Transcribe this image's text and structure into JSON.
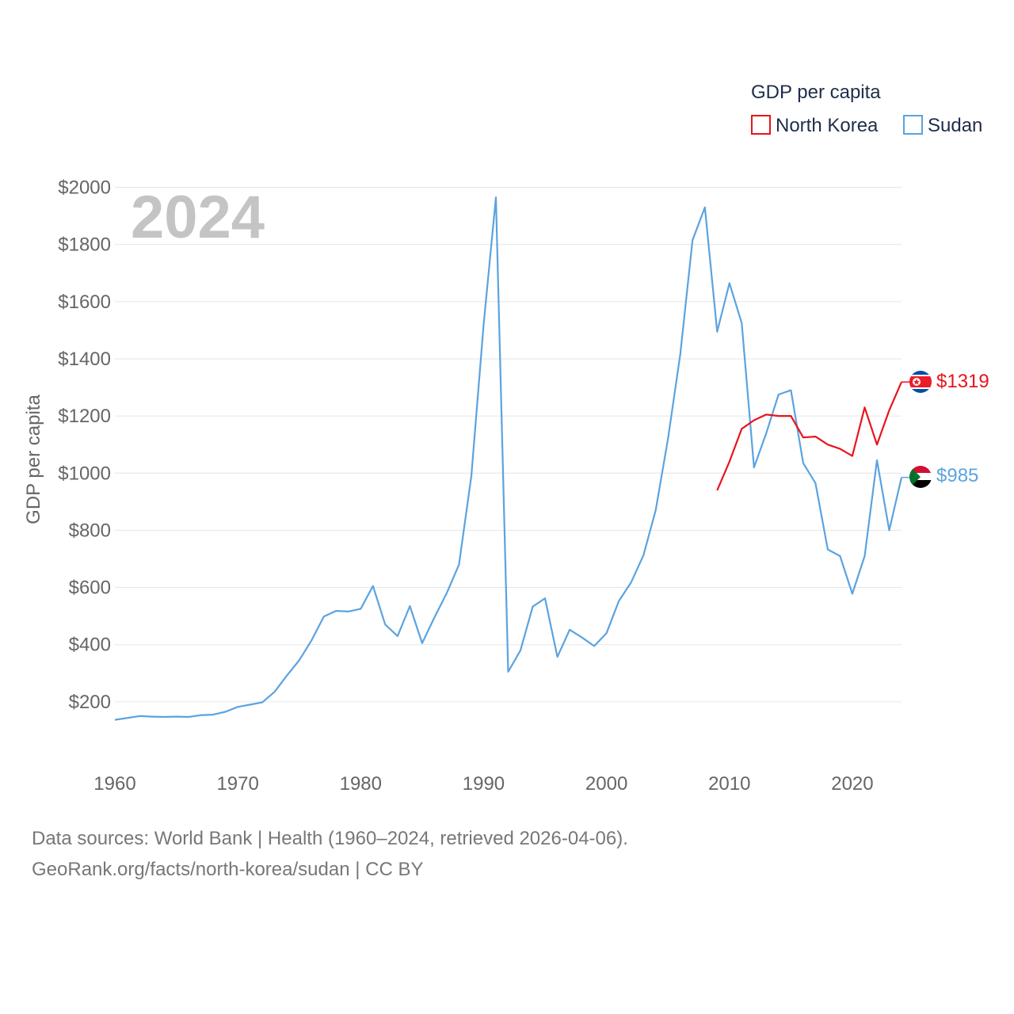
{
  "chart_data": {
    "type": "line",
    "year_overlay": "2024",
    "ylabel": "GDP per capita",
    "xlabel": "",
    "xlim": [
      1960,
      2024
    ],
    "ylim": [
      0,
      2000
    ],
    "x_ticks": [
      1960,
      1970,
      1980,
      1990,
      2000,
      2010,
      2020
    ],
    "x_tick_labels": [
      "1960",
      "1970",
      "1980",
      "1990",
      "2000",
      "2010",
      "2020"
    ],
    "y_ticks": [
      200,
      400,
      600,
      800,
      1000,
      1200,
      1400,
      1600,
      1800,
      2000
    ],
    "y_tick_labels": [
      "$200",
      "$400",
      "$600",
      "$800",
      "$1000",
      "$1200",
      "$1400",
      "$1600",
      "$1800",
      "$2000"
    ],
    "legend": {
      "title": "GDP per capita",
      "placement": "top-right"
    },
    "series": [
      {
        "name": "North Korea",
        "color": "#e8141c",
        "flag_icon": "north-korea-flag-icon",
        "end_label": "$1319",
        "x": [
          2009,
          2010,
          2011,
          2012,
          2013,
          2014,
          2015,
          2016,
          2017,
          2018,
          2019,
          2020,
          2021,
          2022,
          2023,
          2024
        ],
        "values": [
          940,
          1040,
          1155,
          1185,
          1205,
          1200,
          1200,
          1125,
          1128,
          1100,
          1085,
          1060,
          1230,
          1100,
          1220,
          1319
        ]
      },
      {
        "name": "Sudan",
        "color": "#5ba3e0",
        "flag_icon": "sudan-flag-icon",
        "end_label": "$985",
        "x": [
          1960,
          1961,
          1962,
          1963,
          1964,
          1965,
          1966,
          1967,
          1968,
          1969,
          1970,
          1971,
          1972,
          1973,
          1974,
          1975,
          1976,
          1977,
          1978,
          1979,
          1980,
          1981,
          1982,
          1983,
          1984,
          1985,
          1986,
          1987,
          1988,
          1989,
          1990,
          1991,
          1992,
          1993,
          1994,
          1995,
          1996,
          1997,
          1998,
          1999,
          2000,
          2001,
          2002,
          2003,
          2004,
          2005,
          2006,
          2007,
          2008,
          2009,
          2010,
          2011,
          2012,
          2013,
          2014,
          2015,
          2016,
          2017,
          2018,
          2019,
          2020,
          2021,
          2022,
          2023,
          2024
        ],
        "values": [
          137,
          143,
          150,
          148,
          147,
          148,
          147,
          153,
          155,
          165,
          182,
          190,
          198,
          235,
          292,
          345,
          415,
          498,
          518,
          516,
          525,
          605,
          470,
          430,
          535,
          405,
          495,
          580,
          680,
          990,
          1520,
          1965,
          305,
          380,
          533,
          562,
          357,
          452,
          425,
          395,
          440,
          552,
          618,
          712,
          870,
          1120,
          1415,
          1815,
          1930,
          1495,
          1665,
          1525,
          1020,
          1140,
          1275,
          1290,
          1035,
          965,
          733,
          710,
          578,
          710,
          1045,
          800,
          985
        ]
      }
    ]
  },
  "footer": {
    "line1": "Data sources: World Bank | Health (1960–2024, retrieved 2026-04-06).",
    "line2": "GeoRank.org/facts/north-korea/sudan | CC BY"
  }
}
